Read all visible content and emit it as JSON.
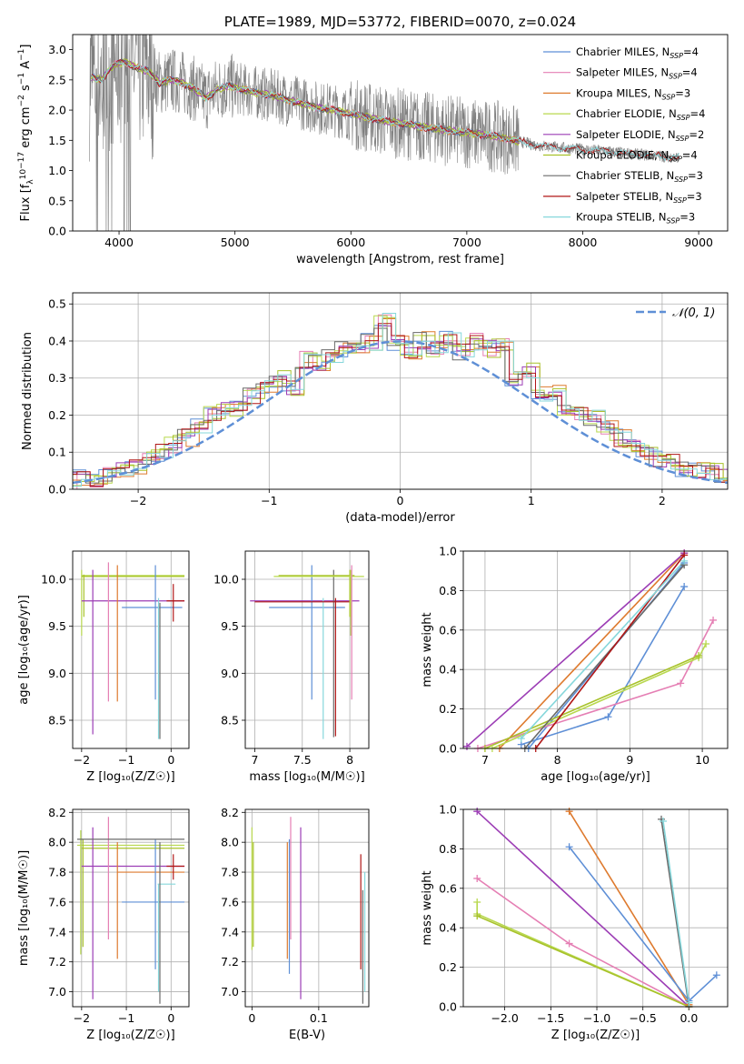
{
  "colors": {
    "blue": "#5e8fd6",
    "pink": "#e57fb4",
    "orange": "#de7a2e",
    "green": "#b8d84e",
    "purple": "#9c3db5",
    "olive": "#a8c22a",
    "gray": "#6a6a6a",
    "red": "#b01616",
    "cyan": "#86d7db",
    "data": "#808080"
  },
  "chart_data": [
    {
      "id": "spectrum",
      "type": "line",
      "title": "PLATE=1989, MJD=53772, FIBERID=0070, z=0.024",
      "xlabel": "wavelength [Angstrom, rest frame]",
      "ylabel_parts": [
        "Flux [f",
        "λ",
        "10",
        "−17",
        " erg cm",
        "−2",
        " s",
        "−1",
        " A",
        "−1",
        "]"
      ],
      "xlim": [
        3600,
        9250
      ],
      "ylim": [
        0,
        3.25
      ],
      "xticks": [
        4000,
        5000,
        6000,
        7000,
        8000,
        9000
      ],
      "yticks": [
        0.0,
        0.5,
        1.0,
        1.5,
        2.0,
        2.5,
        3.0
      ],
      "continuum": {
        "x": [
          3750,
          3850,
          3950,
          4050,
          4150,
          4250,
          4350,
          4450,
          4550,
          4650,
          4750,
          4850,
          4950,
          5100,
          5300,
          5500,
          5700,
          5900,
          6100,
          6300,
          6500,
          6700,
          6900,
          7100,
          7300,
          7400,
          7600,
          7800,
          8000,
          8200,
          8400,
          8600,
          8800
        ],
        "y": [
          2.55,
          2.5,
          2.75,
          2.8,
          2.7,
          2.65,
          2.45,
          2.5,
          2.45,
          2.35,
          2.2,
          2.35,
          2.4,
          2.32,
          2.25,
          2.15,
          2.05,
          1.98,
          1.9,
          1.82,
          1.76,
          1.7,
          1.65,
          1.6,
          1.55,
          1.5,
          1.42,
          1.38,
          1.35,
          1.32,
          1.28,
          1.25,
          1.22
        ]
      },
      "legend": [
        {
          "label": "Chabrier MILES, N",
          "sub": "SSP",
          "tail": "=4",
          "color": "blue"
        },
        {
          "label": "Salpeter MILES, N",
          "sub": "SSP",
          "tail": "=4",
          "color": "pink"
        },
        {
          "label": "Kroupa MILES, N",
          "sub": "SSP",
          "tail": "=3",
          "color": "orange"
        },
        {
          "label": "Chabrier ELODIE, N",
          "sub": "SSP",
          "tail": "=4",
          "color": "green"
        },
        {
          "label": "Salpeter ELODIE, N",
          "sub": "SSP",
          "tail": "=2",
          "color": "purple"
        },
        {
          "label": "Kroupa ELODIE, N",
          "sub": "SSP",
          "tail": "=4",
          "color": "olive"
        },
        {
          "label": "Chabrier STELIB, N",
          "sub": "SSP",
          "tail": "=3",
          "color": "gray"
        },
        {
          "label": "Salpeter STELIB, N",
          "sub": "SSP",
          "tail": "=3",
          "color": "red"
        },
        {
          "label": "Kroupa STELIB, N",
          "sub": "SSP",
          "tail": "=3",
          "color": "cyan"
        }
      ]
    },
    {
      "id": "residuals",
      "type": "step",
      "xlabel": "(data-model)/error",
      "ylabel": "Normed distribution",
      "xlim": [
        -2.5,
        2.5
      ],
      "ylim": [
        0,
        0.53
      ],
      "xticks": [
        -2,
        -1,
        0,
        1,
        2
      ],
      "yticks": [
        0.0,
        0.1,
        0.2,
        0.3,
        0.4,
        0.5
      ],
      "legend": "𝒩(0, 1)",
      "histogram_shape": [
        0.02,
        0.03,
        0.03,
        0.04,
        0.05,
        0.06,
        0.08,
        0.1,
        0.12,
        0.14,
        0.17,
        0.2,
        0.22,
        0.22,
        0.25,
        0.28,
        0.3,
        0.27,
        0.35,
        0.34,
        0.36,
        0.38,
        0.39,
        0.4,
        0.45,
        0.39,
        0.37,
        0.4,
        0.38,
        0.41,
        0.37,
        0.4,
        0.38,
        0.39,
        0.3,
        0.32,
        0.26,
        0.26,
        0.22,
        0.21,
        0.19,
        0.17,
        0.14,
        0.12,
        0.1,
        0.08,
        0.07,
        0.05,
        0.05,
        0.05,
        0.04,
        0.03
      ]
    },
    {
      "id": "age-vs-Z",
      "type": "errorbar",
      "xlabel": "Z [log₁₀(Z/Z☉)]",
      "ylabel": "age  [log₁₀(age/yr)]",
      "xlim": [
        -2.2,
        0.4
      ],
      "ylim": [
        8.2,
        10.3
      ],
      "xticks": [
        -2,
        -1,
        0
      ],
      "yticks": [
        8.5,
        9.0,
        9.5,
        10.0
      ]
    },
    {
      "id": "age-vs-mass",
      "type": "errorbar",
      "xlabel": "mass [log₁₀(M/M☉)]",
      "xlim": [
        6.9,
        8.2
      ],
      "ylim": [
        8.2,
        10.3
      ],
      "xticks": [
        7.0,
        7.5,
        8.0
      ],
      "yticks": [
        8.5,
        9.0,
        9.5,
        10.0
      ]
    },
    {
      "id": "weight-vs-age",
      "type": "line",
      "xlabel": "age  [log₁₀(age/yr)]",
      "ylabel": "mass weight",
      "xlim": [
        6.7,
        10.35
      ],
      "ylim": [
        0,
        1
      ],
      "xticks": [
        7,
        8,
        9,
        10
      ],
      "yticks": [
        0.0,
        0.2,
        0.4,
        0.6,
        0.8,
        1.0
      ],
      "series": [
        {
          "color": "blue",
          "x": [
            7.5,
            8.7,
            9.75
          ],
          "y": [
            0.02,
            0.16,
            0.82
          ]
        },
        {
          "color": "blue",
          "x": [
            7.6,
            9.75
          ],
          "y": [
            0.0,
            0.94
          ]
        },
        {
          "color": "pink",
          "x": [
            6.9,
            9.7,
            10.15
          ],
          "y": [
            0.0,
            0.33,
            0.65
          ]
        },
        {
          "color": "orange",
          "x": [
            7.2,
            9.75
          ],
          "y": [
            0.0,
            0.99
          ]
        },
        {
          "color": "purple",
          "x": [
            6.75,
            9.75
          ],
          "y": [
            0.01,
            0.99
          ]
        },
        {
          "color": "green",
          "x": [
            7.1,
            9.95,
            10.05
          ],
          "y": [
            0.0,
            0.46,
            0.53
          ]
        },
        {
          "color": "olive",
          "x": [
            7.0,
            9.95
          ],
          "y": [
            0.0,
            0.47
          ]
        },
        {
          "color": "gray",
          "x": [
            7.55,
            9.75
          ],
          "y": [
            0.0,
            0.93
          ]
        },
        {
          "color": "red",
          "x": [
            7.7,
            9.75
          ],
          "y": [
            0.0,
            0.98
          ]
        },
        {
          "color": "cyan",
          "x": [
            7.5,
            9.75
          ],
          "y": [
            0.05,
            0.95
          ]
        }
      ]
    },
    {
      "id": "mass-vs-Z",
      "type": "errorbar",
      "xlabel": "Z [log₁₀(Z/Z☉)]",
      "ylabel": "mass [log₁₀(M/M☉)]",
      "xlim": [
        -2.2,
        0.4
      ],
      "ylim": [
        6.9,
        8.22
      ],
      "xticks": [
        -2,
        -1,
        0
      ],
      "yticks": [
        7.0,
        7.2,
        7.4,
        7.6,
        7.8,
        8.0,
        8.2
      ]
    },
    {
      "id": "mass-vs-ebv",
      "type": "errorbar",
      "xlabel": "E(B-V)",
      "xlim": [
        -0.01,
        0.175
      ],
      "ylim": [
        6.9,
        8.22
      ],
      "xticks": [
        0.0,
        0.1
      ],
      "yticks": [
        7.0,
        7.2,
        7.4,
        7.6,
        7.8,
        8.0,
        8.2
      ]
    },
    {
      "id": "weight-vs-Z",
      "type": "line",
      "xlabel": "Z [log₁₀(Z/Z☉)]",
      "ylabel": "mass weight",
      "xlim": [
        -2.45,
        0.42
      ],
      "ylim": [
        0,
        1
      ],
      "xticks": [
        -2.0,
        -1.5,
        -1.0,
        -0.5,
        0.0
      ],
      "yticks": [
        0.0,
        0.2,
        0.4,
        0.6,
        0.8,
        1.0
      ],
      "series": [
        {
          "color": "purple",
          "x": [
            -2.3,
            0.0
          ],
          "y": [
            0.99,
            0.0
          ]
        },
        {
          "color": "orange",
          "x": [
            -1.3,
            0.0
          ],
          "y": [
            0.99,
            0.01
          ]
        },
        {
          "color": "blue",
          "x": [
            -1.3,
            0.0,
            0.3
          ],
          "y": [
            0.81,
            0.03,
            0.16
          ]
        },
        {
          "color": "pink",
          "x": [
            -2.3,
            -1.3,
            0.0
          ],
          "y": [
            0.65,
            0.32,
            0.0
          ]
        },
        {
          "color": "green",
          "x": [
            -2.3,
            -2.3,
            0.0
          ],
          "y": [
            0.53,
            0.47,
            0.0
          ]
        },
        {
          "color": "olive",
          "x": [
            -2.3,
            0.0
          ],
          "y": [
            0.46,
            0.0
          ]
        },
        {
          "color": "gray",
          "x": [
            -0.3,
            0.0
          ],
          "y": [
            0.95,
            0.0
          ]
        },
        {
          "color": "cyan",
          "x": [
            -0.28,
            0.0
          ],
          "y": [
            0.94,
            0.02
          ]
        }
      ]
    }
  ]
}
